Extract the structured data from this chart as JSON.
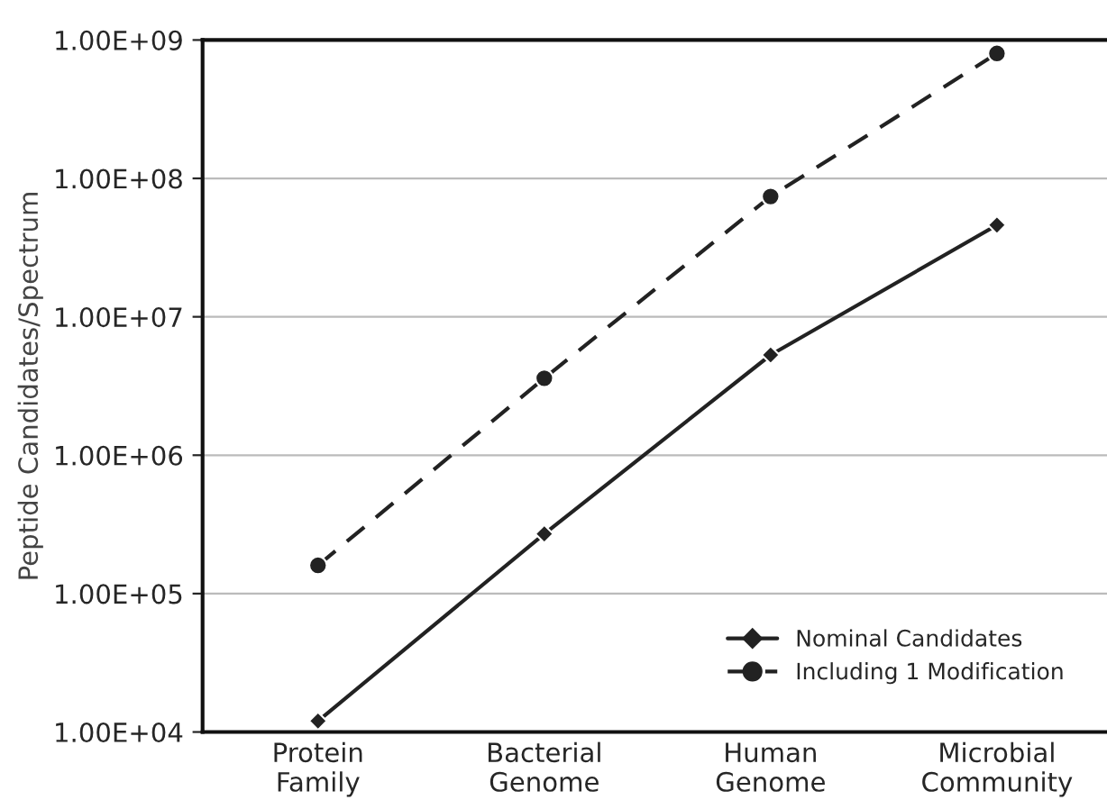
{
  "chart_data": {
    "type": "line",
    "ylabel": "Peptide Candidates/Spectrum",
    "categories": [
      "Protein\nFamily",
      "Bacterial\nGenome",
      "Human\nGenome",
      "Microbial\nCommunity"
    ],
    "series": [
      {
        "name": "Nominal Candidates",
        "color": "#222222",
        "values": [
          12000,
          270000,
          5300000,
          46000000
        ],
        "marker": "diamond",
        "line_style": "solid"
      },
      {
        "name": "Including 1 Modification",
        "color": "#222222",
        "values": [
          160000,
          3600000,
          74000000,
          800000000
        ],
        "marker": "circle",
        "line_style": "dashed"
      }
    ],
    "log": "y",
    "ylim": [
      10000,
      1000000000
    ],
    "yticks": [
      {
        "value": 10000,
        "label": "1.00E+04"
      },
      {
        "value": 100000,
        "label": "1.00E+05"
      },
      {
        "value": 1000000,
        "label": "1.00E+06"
      },
      {
        "value": 10000000,
        "label": "1.00E+07"
      },
      {
        "value": 100000000,
        "label": "1.00E+08"
      },
      {
        "value": 1000000000,
        "label": "1.00E+09"
      }
    ],
    "grid": "y",
    "legend": "bottom right"
  }
}
